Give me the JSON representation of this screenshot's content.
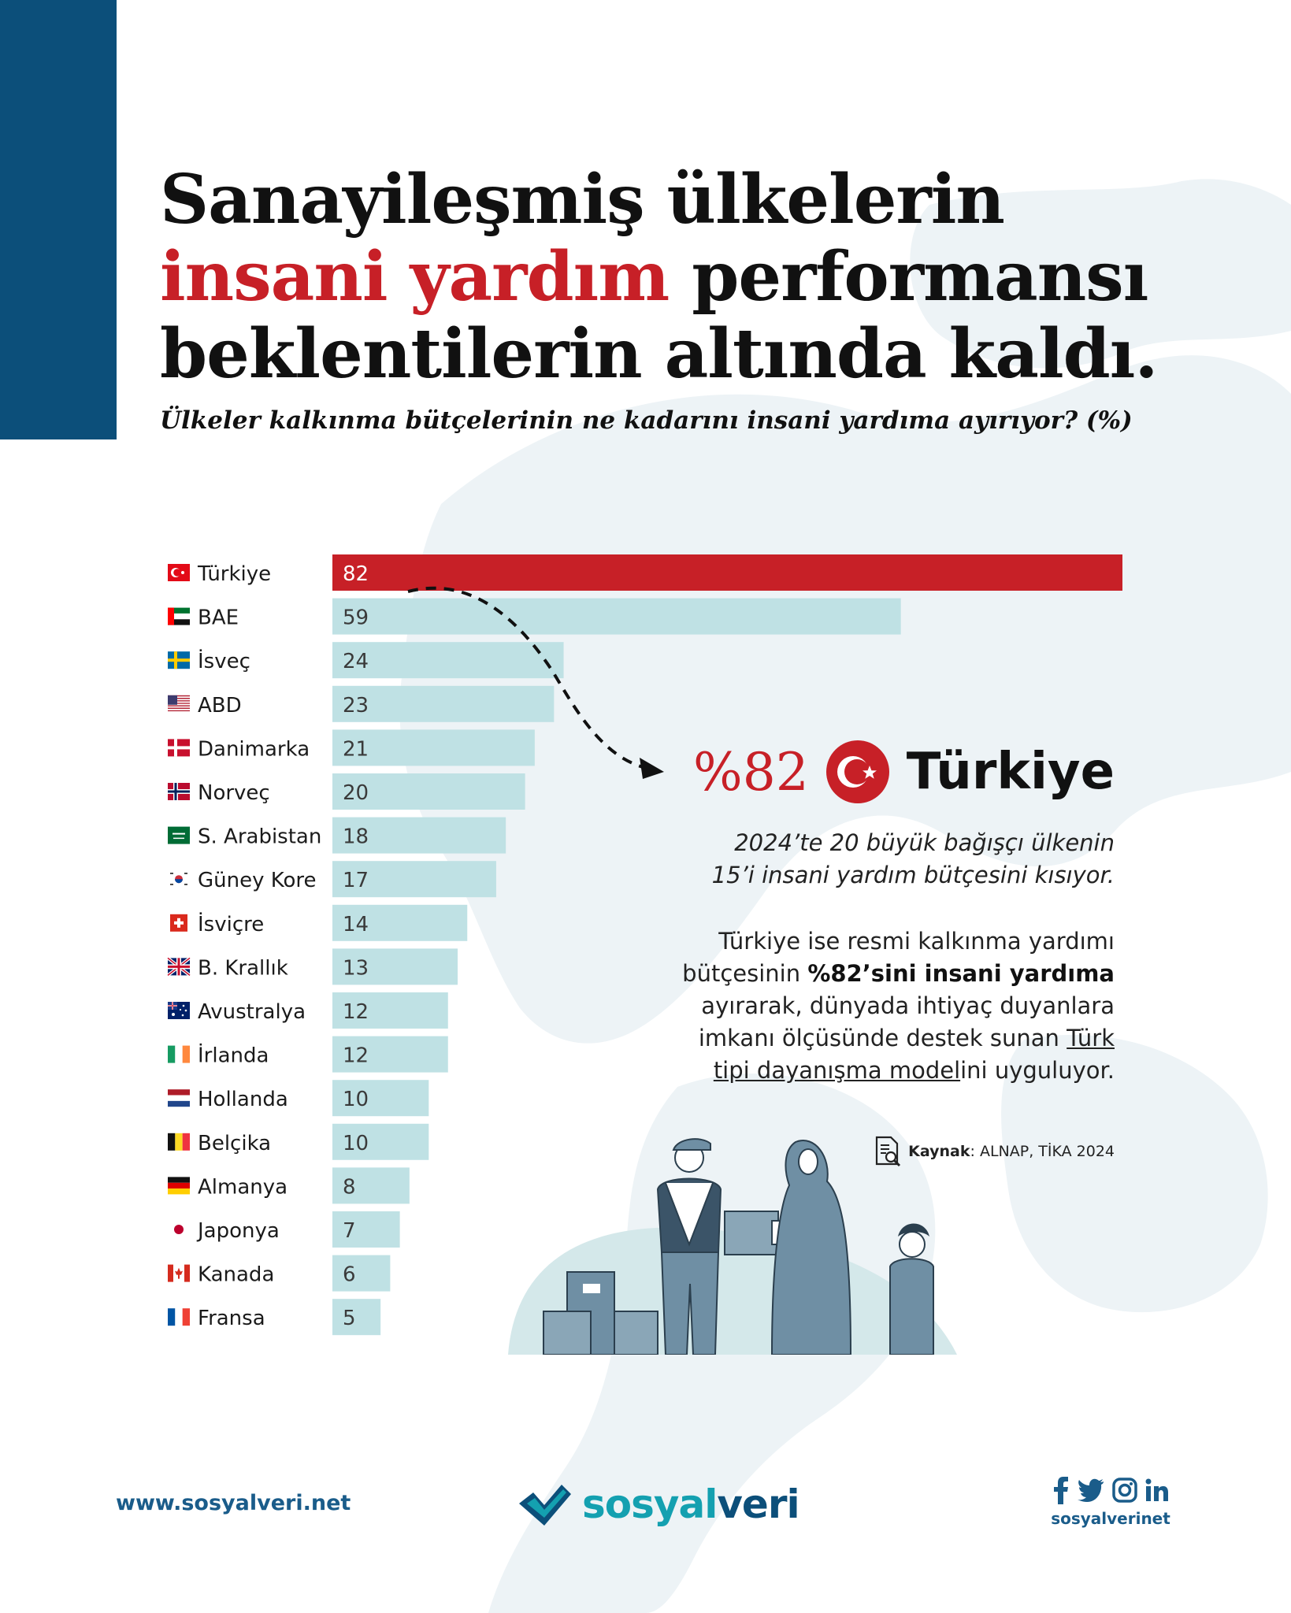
{
  "title": {
    "line1": "Sanayileşmiş ülkelerin",
    "line2_accent": "insani yardım",
    "line2_rest": " performansı",
    "line3": "beklentilerin altında kaldı."
  },
  "subtitle": "Ülkeler kalkınma bütçelerinin ne kadarını insani yardıma ayırıyor? (%)",
  "chart_data": {
    "type": "bar",
    "orientation": "horizontal",
    "categories": [
      "Türkiye",
      "BAE",
      "İsveç",
      "ABD",
      "Danimarka",
      "Norveç",
      "S. Arabistan",
      "Güney Kore",
      "İsviçre",
      "B. Krallık",
      "Avustralya",
      "İrlanda",
      "Hollanda",
      "Belçika",
      "Almanya",
      "Japonya",
      "Kanada",
      "Fransa"
    ],
    "values": [
      82,
      59,
      24,
      23,
      21,
      20,
      18,
      17,
      14,
      13,
      12,
      12,
      10,
      10,
      8,
      7,
      6,
      5
    ],
    "title": "",
    "xlabel": "",
    "ylabel": "",
    "xlim": [
      0,
      82
    ],
    "grid": false,
    "highlight_color": "#c72027",
    "bar_color": "#bfe1e4",
    "flags": [
      "tr",
      "ae",
      "se",
      "us",
      "dk",
      "no",
      "sa",
      "kr",
      "ch",
      "gb",
      "au",
      "ie",
      "nl",
      "be",
      "de",
      "jp",
      "ca",
      "fr"
    ]
  },
  "callout": {
    "percent": "%82",
    "country": "Türkiye",
    "note_line1": "2024’te 20 büyük bağışçı ülkenin",
    "note_line2": "15’i insani yardım bütçesini kısıyor.",
    "body_line1": "Türkiye ise resmi kalkınma yardımı",
    "body_line2_pre": "bütçesinin ",
    "body_line2_bold": "%82’sini insani yardıma",
    "body_line3": "ayırarak, dünyada ihtiyaç duyanlara",
    "body_line4_pre": "imkanı ölçüsünde destek sunan ",
    "body_line4_link": "Türk",
    "body_line5_link": "tipi dayanışma model",
    "body_line5_rest": "ini uyguluyor."
  },
  "source": {
    "label": "Kaynak",
    "text": ": ALNAP, TİKA 2024"
  },
  "footer": {
    "url": "www.sosyalveri.net",
    "logo_part1": "sosyal",
    "logo_part2": "veri",
    "social_handle": "sosyalverinet",
    "social_icons": [
      "facebook-icon",
      "twitter-icon",
      "instagram-icon",
      "linkedin-icon"
    ]
  },
  "colors": {
    "brand_blue": "#0c4f7a",
    "accent_red": "#c72027",
    "bar_light": "#bfe1e4",
    "logo_teal": "#14a0b0"
  }
}
